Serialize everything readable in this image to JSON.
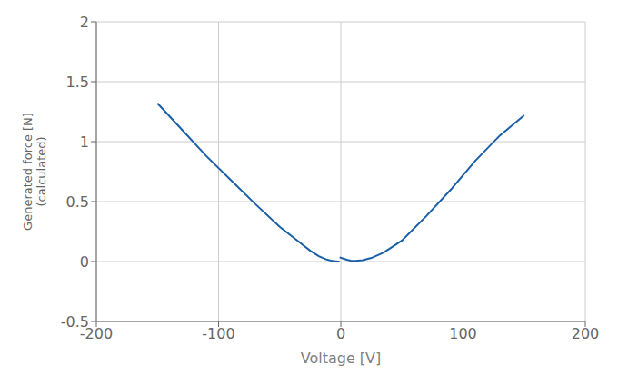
{
  "chart_data": {
    "type": "line",
    "xlabel": "Voltage [V]",
    "ylabel": "Generated force [N]\n(calculated)",
    "xlim": [
      -200,
      200
    ],
    "ylim": [
      -0.5,
      2.0
    ],
    "xticks": [
      -200,
      -100,
      0,
      100,
      200
    ],
    "yticks": [
      -0.5,
      0,
      0.5,
      1,
      1.5,
      2
    ],
    "grid": true,
    "series": [
      {
        "color": "#1a5fa8",
        "x": [
          -150,
          -130,
          -110,
          -90,
          -70,
          -50,
          -35,
          -25,
          -18,
          -12,
          -8,
          -5,
          -3,
          -1
        ],
        "values": [
          1.32,
          1.1,
          0.88,
          0.68,
          0.48,
          0.29,
          0.17,
          0.09,
          0.045,
          0.018,
          0.007,
          0.003,
          0.001,
          0.0
        ]
      },
      {
        "color": "#1a5fa8",
        "x": [
          -1,
          2,
          5,
          8,
          12,
          18,
          25,
          35,
          50,
          70,
          90,
          110,
          130,
          150
        ],
        "values": [
          0.035,
          0.025,
          0.015,
          0.008,
          0.005,
          0.012,
          0.03,
          0.075,
          0.175,
          0.38,
          0.6,
          0.84,
          1.05,
          1.22
        ]
      }
    ]
  }
}
